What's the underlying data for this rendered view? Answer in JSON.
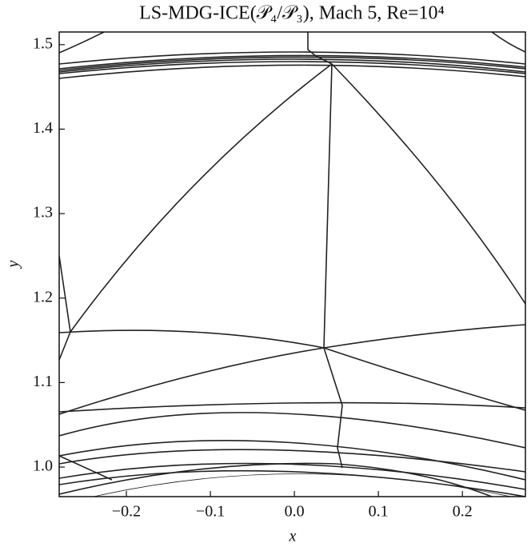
{
  "chart_data": {
    "type": "mesh",
    "title": "LS-MDG-ICE(𝒫₄/𝒫₃), Mach 5, Re=10⁴",
    "x_label": "x",
    "y_label": "y",
    "xlim": [
      -0.28,
      0.275
    ],
    "ylim": [
      0.965,
      1.515
    ],
    "xticks": [
      {
        "value": -0.2,
        "label": "−0.2"
      },
      {
        "value": -0.1,
        "label": "−0.1"
      },
      {
        "value": 0,
        "label": "0.0"
      },
      0.1,
      0.2
    ],
    "yticks": [
      {
        "value": 1.0,
        "label": "1.0"
      },
      1.1,
      1.2,
      1.3,
      1.4,
      1.5
    ],
    "color": "#222222"
  }
}
